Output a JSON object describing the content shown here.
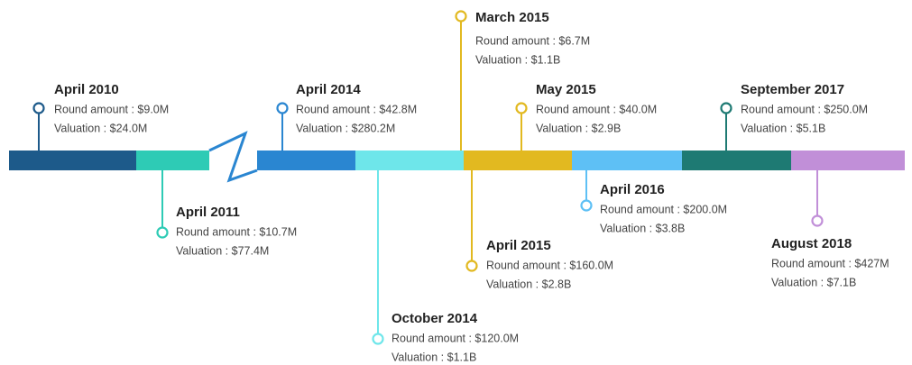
{
  "events": [
    {
      "date": "April 2010",
      "round": "Round amount : $9.0M",
      "valuation": "Valuation : $24.0M"
    },
    {
      "date": "April 2011",
      "round": "Round amount : $10.7M",
      "valuation": "Valuation : $77.4M"
    },
    {
      "date": "April 2014",
      "round": "Round amount : $42.8M",
      "valuation": "Valuation : $280.2M"
    },
    {
      "date": "October 2014",
      "round": "Round amount : $120.0M",
      "valuation": "Valuation : $1.1B"
    },
    {
      "date": "March 2015",
      "round": "Round amount : $6.7M",
      "valuation": "Valuation : $1.1B"
    },
    {
      "date": "April 2015",
      "round": "Round amount : $160.0M",
      "valuation": "Valuation : $2.8B"
    },
    {
      "date": "May 2015",
      "round": "Round amount : $40.0M",
      "valuation": "Valuation : $2.9B"
    },
    {
      "date": "April 2016",
      "round": "Round amount : $200.0M",
      "valuation": "Valuation : $3.8B"
    },
    {
      "date": "September 2017",
      "round": "Round amount : $250.0M",
      "valuation": "Valuation : $5.1B"
    },
    {
      "date": "August 2018",
      "round": "Round amount : $427M",
      "valuation": "Valuation : $7.1B"
    }
  ]
}
